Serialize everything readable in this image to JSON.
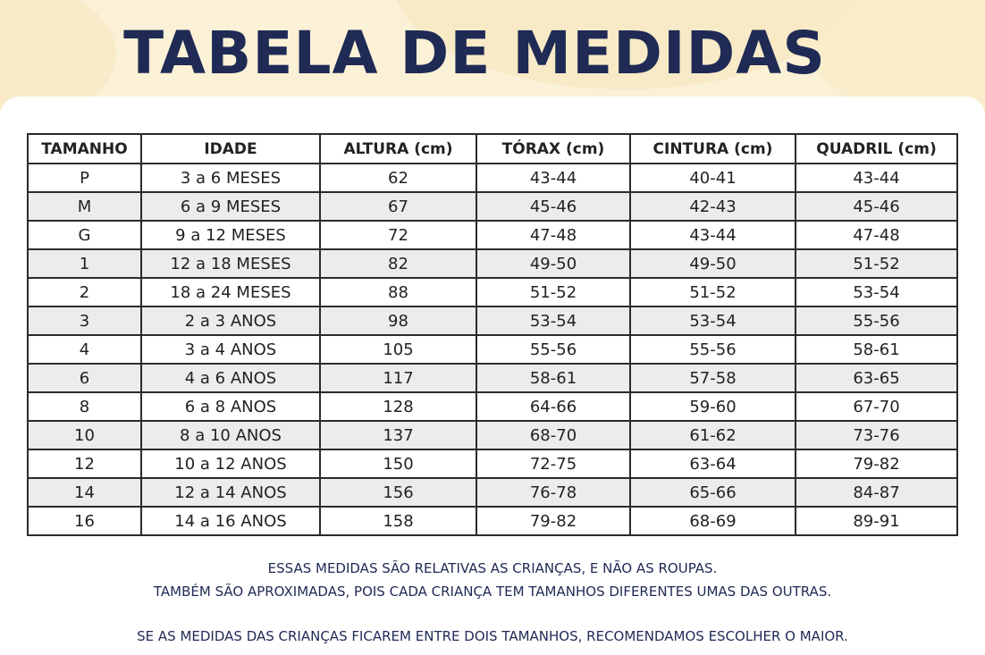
{
  "title": "TABELA DE MEDIDAS",
  "colors": {
    "title": "#1f2a55",
    "background": "#fbf1d6",
    "card": "#ffffff",
    "stripe": "#ececec"
  },
  "table": {
    "headers": [
      "TAMANHO",
      "IDADE",
      "ALTURA (cm)",
      "TÓRAX (cm)",
      "CINTURA (cm)",
      "QUADRIL (cm)"
    ],
    "rows": [
      [
        "P",
        "3 a 6 MESES",
        "62",
        "43-44",
        "40-41",
        "43-44"
      ],
      [
        "M",
        "6 a 9 MESES",
        "67",
        "45-46",
        "42-43",
        "45-46"
      ],
      [
        "G",
        "9 a 12 MESES",
        "72",
        "47-48",
        "43-44",
        "47-48"
      ],
      [
        "1",
        "12 a 18 MESES",
        "82",
        "49-50",
        "49-50",
        "51-52"
      ],
      [
        "2",
        "18 a 24 MESES",
        "88",
        "51-52",
        "51-52",
        "53-54"
      ],
      [
        "3",
        "2 a 3 ANOS",
        "98",
        "53-54",
        "53-54",
        "55-56"
      ],
      [
        "4",
        "3 a 4 ANOS",
        "105",
        "55-56",
        "55-56",
        "58-61"
      ],
      [
        "6",
        "4 a 6 ANOS",
        "117",
        "58-61",
        "57-58",
        "63-65"
      ],
      [
        "8",
        "6 a 8 ANOS",
        "128",
        "64-66",
        "59-60",
        "67-70"
      ],
      [
        "10",
        "8 a 10 ANOS",
        "137",
        "68-70",
        "61-62",
        "73-76"
      ],
      [
        "12",
        "10 a 12 ANOS",
        "150",
        "72-75",
        "63-64",
        "79-82"
      ],
      [
        "14",
        "12 a 14 ANOS",
        "156",
        "76-78",
        "65-66",
        "84-87"
      ],
      [
        "16",
        "14 a 16 ANOS",
        "158",
        "79-82",
        "68-69",
        "89-91"
      ]
    ]
  },
  "notes": {
    "line1": "ESSAS MEDIDAS SÃO RELATIVAS AS CRIANÇAS, E NÃO AS ROUPAS.",
    "line2": "TAMBÉM SÃO APROXIMADAS, POIS CADA CRIANÇA TEM TAMANHOS DIFERENTES UMAS DAS OUTRAS.",
    "line3": "SE AS MEDIDAS DAS CRIANÇAS FICAREM ENTRE DOIS TAMANHOS, RECOMENDAMOS ESCOLHER O MAIOR."
  }
}
